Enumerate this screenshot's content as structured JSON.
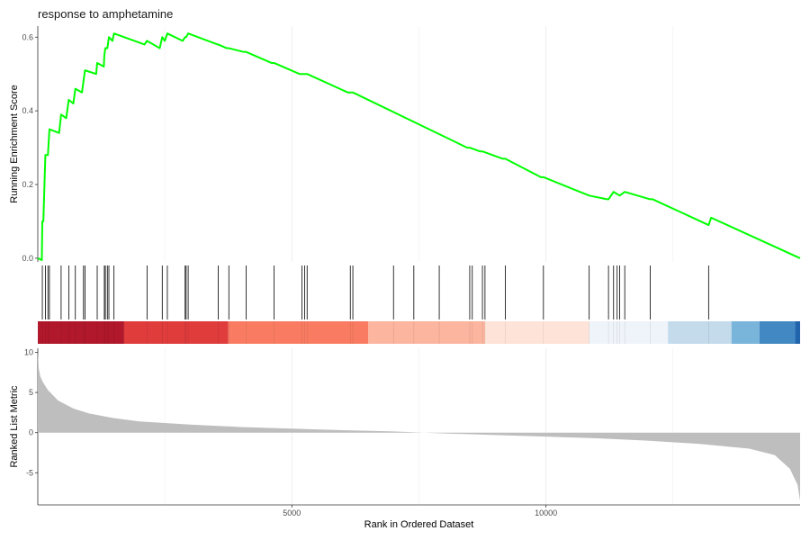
{
  "chart_data": {
    "type": "gsea-enrichment",
    "title": "response to amphetamine",
    "xlabel": "Rank in Ordered Dataset",
    "x_range": [
      1,
      15000
    ],
    "x_ticks": [
      5000,
      10000
    ],
    "x_tick_labels": [
      "5000",
      "10000"
    ],
    "es_panel": {
      "ylabel": "Running Enrichment Score",
      "ylim": [
        -0.01,
        0.63
      ],
      "y_ticks": [
        0.0,
        0.2,
        0.4,
        0.6
      ],
      "y_tick_labels": [
        "0.0",
        "0.2",
        "0.4",
        "0.6"
      ],
      "line_color": "#00ff00",
      "points": [
        [
          1,
          0
        ],
        [
          80,
          -0.005
        ],
        [
          90,
          0.1
        ],
        [
          110,
          0.1
        ],
        [
          150,
          0.28
        ],
        [
          200,
          0.28
        ],
        [
          230,
          0.35
        ],
        [
          420,
          0.34
        ],
        [
          460,
          0.39
        ],
        [
          560,
          0.38
        ],
        [
          610,
          0.43
        ],
        [
          700,
          0.42
        ],
        [
          740,
          0.46
        ],
        [
          870,
          0.45
        ],
        [
          900,
          0.48
        ],
        [
          930,
          0.51
        ],
        [
          1150,
          0.5
        ],
        [
          1170,
          0.53
        ],
        [
          1300,
          0.52
        ],
        [
          1310,
          0.55
        ],
        [
          1330,
          0.57
        ],
        [
          1370,
          0.57
        ],
        [
          1400,
          0.6
        ],
        [
          1470,
          0.59
        ],
        [
          1500,
          0.61
        ],
        [
          2100,
          0.58
        ],
        [
          2150,
          0.59
        ],
        [
          2400,
          0.57
        ],
        [
          2450,
          0.6
        ],
        [
          2500,
          0.59
        ],
        [
          2550,
          0.61
        ],
        [
          2850,
          0.59
        ],
        [
          2900,
          0.6
        ],
        [
          2920,
          0.6
        ],
        [
          2960,
          0.61
        ],
        [
          3540,
          0.58
        ],
        [
          3550,
          0.58
        ],
        [
          3720,
          0.57
        ],
        [
          3760,
          0.57
        ],
        [
          4050,
          0.56
        ],
        [
          4100,
          0.56
        ],
        [
          4600,
          0.53
        ],
        [
          4650,
          0.53
        ],
        [
          5150,
          0.5
        ],
        [
          5200,
          0.5
        ],
        [
          5250,
          0.5
        ],
        [
          5300,
          0.5
        ],
        [
          6100,
          0.45
        ],
        [
          6150,
          0.45
        ],
        [
          6200,
          0.45
        ],
        [
          8450,
          0.3
        ],
        [
          8500,
          0.3
        ],
        [
          8700,
          0.29
        ],
        [
          8750,
          0.29
        ],
        [
          9150,
          0.27
        ],
        [
          9200,
          0.27
        ],
        [
          9900,
          0.22
        ],
        [
          9950,
          0.22
        ],
        [
          10850,
          0.17
        ],
        [
          11200,
          0.16
        ],
        [
          11230,
          0.16
        ],
        [
          11330,
          0.18
        ],
        [
          11450,
          0.17
        ],
        [
          11550,
          0.18
        ],
        [
          12050,
          0.16
        ],
        [
          12100,
          0.16
        ],
        [
          13200,
          0.09
        ],
        [
          13250,
          0.11
        ],
        [
          15000,
          0.0
        ]
      ]
    },
    "hits": {
      "positions": [
        90,
        150,
        200,
        230,
        460,
        610,
        740,
        900,
        930,
        1170,
        1310,
        1330,
        1370,
        1400,
        1500,
        2150,
        2450,
        2550,
        2900,
        2920,
        2960,
        3550,
        3760,
        4100,
        4650,
        5200,
        5250,
        5300,
        6150,
        6200,
        7000,
        7400,
        7900,
        8500,
        8550,
        8750,
        8800,
        9200,
        9950,
        10850,
        11230,
        11330,
        11400,
        11450,
        11550,
        12050,
        13200
      ]
    },
    "color_bar": {
      "segments": [
        {
          "start": 1,
          "end": 1700,
          "color": "#b2182b"
        },
        {
          "start": 1700,
          "end": 3750,
          "color": "#e03c3c"
        },
        {
          "start": 3750,
          "end": 6500,
          "color": "#f97c62"
        },
        {
          "start": 6500,
          "end": 8800,
          "color": "#fcb59f"
        },
        {
          "start": 8800,
          "end": 10850,
          "color": "#fee4d8"
        },
        {
          "start": 10850,
          "end": 12400,
          "color": "#eff3fa"
        },
        {
          "start": 12400,
          "end": 13650,
          "color": "#c3dbeb"
        },
        {
          "start": 13650,
          "end": 14200,
          "color": "#79b4da"
        },
        {
          "start": 14200,
          "end": 14900,
          "color": "#4288c3"
        },
        {
          "start": 14900,
          "end": 15000,
          "color": "#2064ac"
        }
      ]
    },
    "metric_panel": {
      "ylabel": "Ranked List Metric",
      "ylim": [
        -9,
        10.5
      ],
      "y_ticks": [
        -5,
        0,
        5,
        10
      ],
      "y_tick_labels": [
        "-5",
        "0",
        "5",
        "10"
      ],
      "fill_color": "#bebebe",
      "points": [
        [
          1,
          10
        ],
        [
          20,
          8
        ],
        [
          50,
          7
        ],
        [
          100,
          6.3
        ],
        [
          200,
          5.3
        ],
        [
          400,
          4
        ],
        [
          700,
          3
        ],
        [
          1000,
          2.4
        ],
        [
          1500,
          1.8
        ],
        [
          2000,
          1.4
        ],
        [
          3000,
          1.0
        ],
        [
          4000,
          0.7
        ],
        [
          5000,
          0.5
        ],
        [
          6000,
          0.3
        ],
        [
          7000,
          0.15
        ],
        [
          7600,
          0
        ],
        [
          8000,
          -0.1
        ],
        [
          9000,
          -0.3
        ],
        [
          10000,
          -0.5
        ],
        [
          11000,
          -0.7
        ],
        [
          12000,
          -1.0
        ],
        [
          13000,
          -1.4
        ],
        [
          14000,
          -2
        ],
        [
          14500,
          -2.8
        ],
        [
          14800,
          -4.5
        ],
        [
          14950,
          -6.5
        ],
        [
          15000,
          -8.5
        ]
      ]
    },
    "grid": true,
    "legend": "none"
  }
}
